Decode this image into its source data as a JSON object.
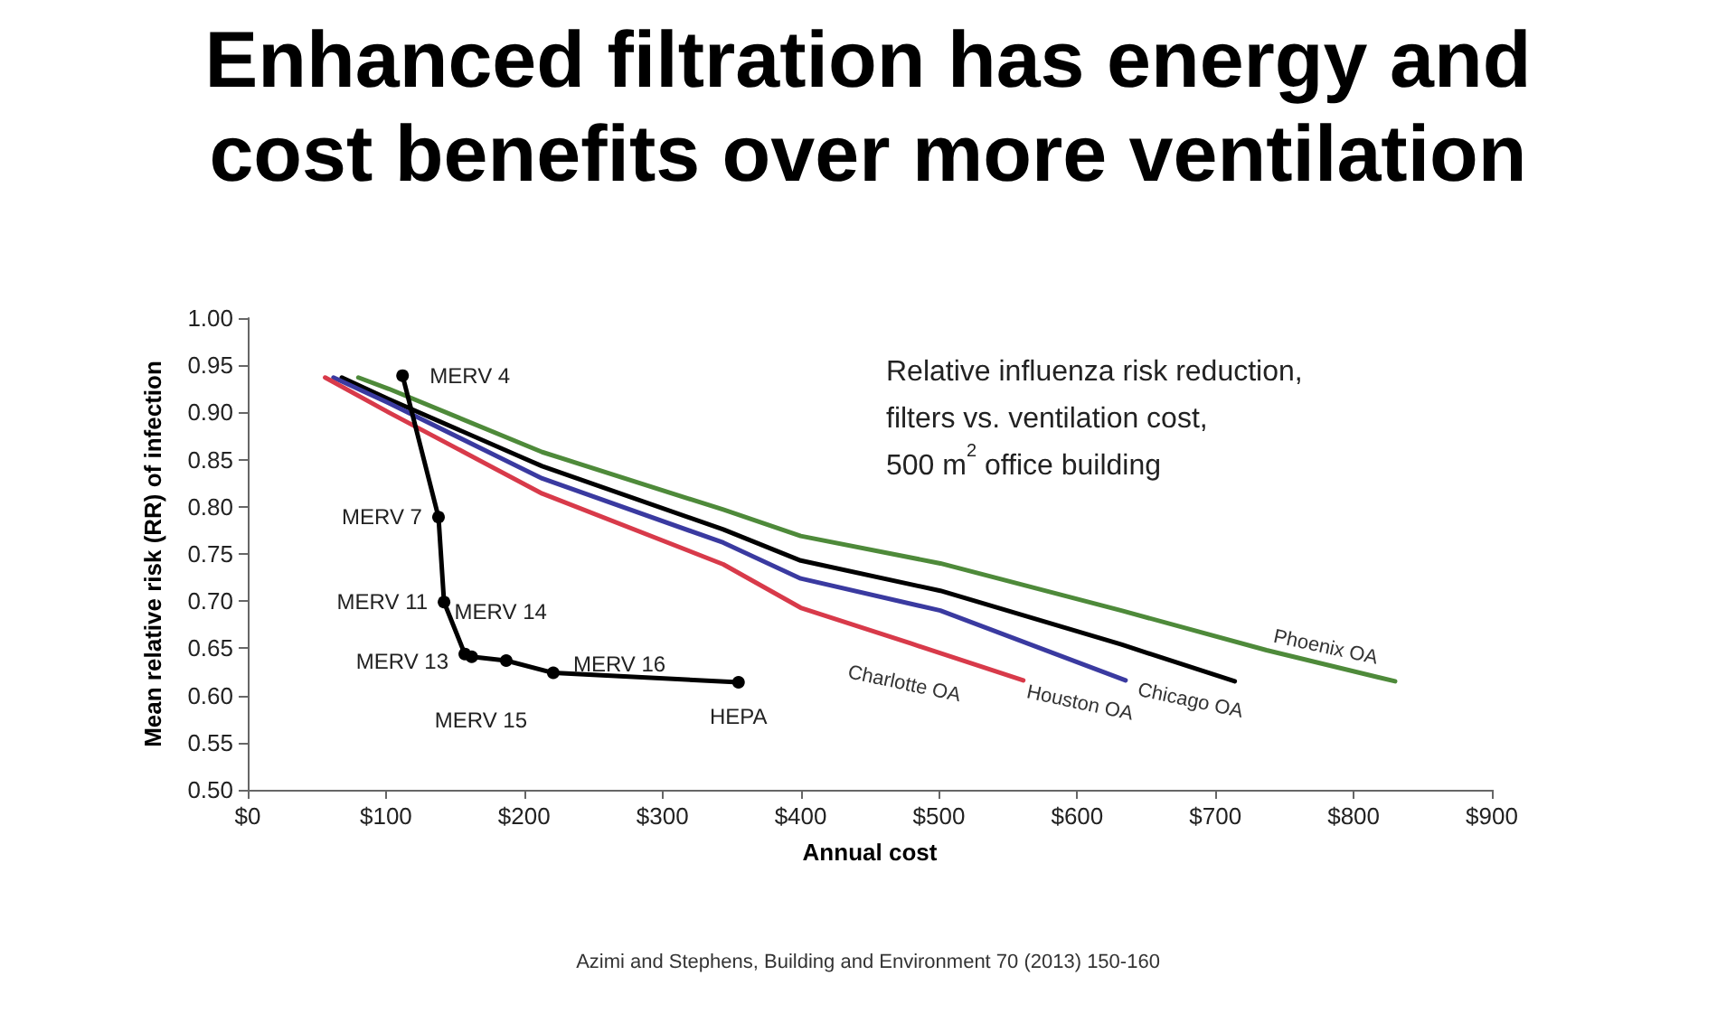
{
  "chart_data": {
    "type": "line",
    "title": "Enhanced filtration has energy and cost benefits over more ventilation",
    "xlabel": "Annual cost",
    "ylabel": "Mean relative risk (RR) of infection",
    "annotations": [
      "Relative influenza risk reduction, filters vs. ventilation cost, 500 m$^{2}$ office building",
      "Azimi and Stephens, Building and Environment 70 (2013) 150-160",
      {
        "text": "MERV 4",
        "x": 112,
        "y": 0.939
      },
      {
        "text": "MERV 7",
        "x": 138,
        "y": 0.789
      },
      {
        "text": "MERV 11",
        "x": 142,
        "y": 0.699
      },
      {
        "text": "MERV 13",
        "x": 157,
        "y": 0.644
      },
      {
        "text": "MERV 14",
        "x": 162,
        "y": 0.641
      },
      {
        "text": "MERV 15",
        "x": 187,
        "y": 0.637
      },
      {
        "text": "MERV 16",
        "x": 221,
        "y": 0.624
      },
      {
        "text": "HEPA",
        "x": 355,
        "y": 0.614
      }
    ],
    "series": [
      {
        "name": "Phoenix OA",
        "color": "#4e8a3a",
        "marker": "none",
        "x": [
          80,
          102,
          213,
          344,
          400,
          501,
          632,
          737,
          830
        ],
        "values": [
          0.937,
          0.925,
          0.858,
          0.797,
          0.769,
          0.74,
          0.69,
          0.648,
          0.615
        ]
      },
      {
        "name": "Chicago OA",
        "color": "#000000",
        "marker": "none",
        "x": [
          68,
          102,
          213,
          344,
          400,
          501,
          632,
          714
        ],
        "values": [
          0.937,
          0.914,
          0.843,
          0.776,
          0.743,
          0.711,
          0.654,
          0.615
        ]
      },
      {
        "name": "Houston OA",
        "color": "#3a3aa0",
        "marker": "none",
        "x": [
          62,
          102,
          213,
          344,
          400,
          501,
          635
        ],
        "values": [
          0.937,
          0.91,
          0.83,
          0.762,
          0.724,
          0.69,
          0.616
        ]
      },
      {
        "name": "Charlotte OA",
        "color": "#d83a4a",
        "marker": "none",
        "x": [
          56,
          102,
          213,
          344,
          400,
          480,
          561
        ],
        "values": [
          0.937,
          0.9,
          0.814,
          0.739,
          0.693,
          0.655,
          0.616
        ]
      },
      {
        "color": "#000000",
        "marker": "circle",
        "x": [
          112,
          138,
          142,
          157,
          162,
          187,
          221,
          355
        ],
        "values": [
          0.939,
          0.789,
          0.699,
          0.644,
          0.641,
          0.637,
          0.624,
          0.614
        ]
      }
    ],
    "xlim": [
      0,
      900
    ],
    "xticks": [
      {
        "value": 0,
        "label": "$0"
      },
      {
        "value": 100,
        "label": "$100"
      },
      {
        "value": 200,
        "label": "$200"
      },
      {
        "value": 300,
        "label": "$300"
      },
      {
        "value": 400,
        "label": "$400"
      },
      {
        "value": 500,
        "label": "$500"
      },
      {
        "value": 600,
        "label": "$600"
      },
      {
        "value": 700,
        "label": "$700"
      },
      {
        "value": 800,
        "label": "$800"
      },
      {
        "value": 900,
        "label": "$900"
      }
    ],
    "ylim": [
      0.5,
      1
    ],
    "yticks": [
      {
        "value": 0.5,
        "label": "0.50"
      },
      {
        "value": 0.55,
        "label": "0.55"
      },
      {
        "value": 0.6,
        "label": "0.60"
      },
      {
        "value": 0.65,
        "label": "0.65"
      },
      {
        "value": 0.7,
        "label": "0.70"
      },
      {
        "value": 0.75,
        "label": "0.75"
      },
      {
        "value": 0.8,
        "label": "0.80"
      },
      {
        "value": 0.85,
        "label": "0.85"
      },
      {
        "value": 0.9,
        "label": "0.90"
      },
      {
        "value": 0.95,
        "label": "0.95"
      },
      {
        "value": 1,
        "label": "1.00"
      }
    ],
    "grid": false,
    "legend": false,
    "line_style": "solid"
  }
}
